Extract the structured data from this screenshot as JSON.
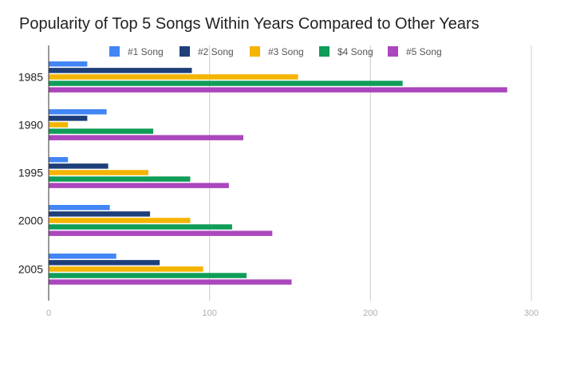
{
  "chart_data": {
    "type": "bar",
    "orientation": "horizontal",
    "title": "Popularity of Top 5 Songs Within Years Compared to Other Years",
    "categories": [
      "1985",
      "1990",
      "1995",
      "2000",
      "2005"
    ],
    "series": [
      {
        "name": "#1 Song",
        "color": "#4285f4",
        "values": [
          24,
          36,
          12,
          38,
          42
        ]
      },
      {
        "name": "#2 Song",
        "color": "#1f3f7a",
        "values": [
          89,
          24,
          37,
          63,
          69
        ]
      },
      {
        "name": "#3 Song",
        "color": "#f4b400",
        "values": [
          155,
          12,
          62,
          88,
          96
        ]
      },
      {
        "name": "$4 Song",
        "color": "#0f9d58",
        "values": [
          220,
          65,
          88,
          114,
          123
        ]
      },
      {
        "name": "#5 Song",
        "color": "#ab47bc",
        "values": [
          285,
          121,
          112,
          139,
          151
        ]
      }
    ],
    "x_ticks": [
      "0",
      "100",
      "200",
      "300"
    ],
    "xlim": [
      0,
      300
    ],
    "grid": true,
    "legend_position": "top"
  }
}
